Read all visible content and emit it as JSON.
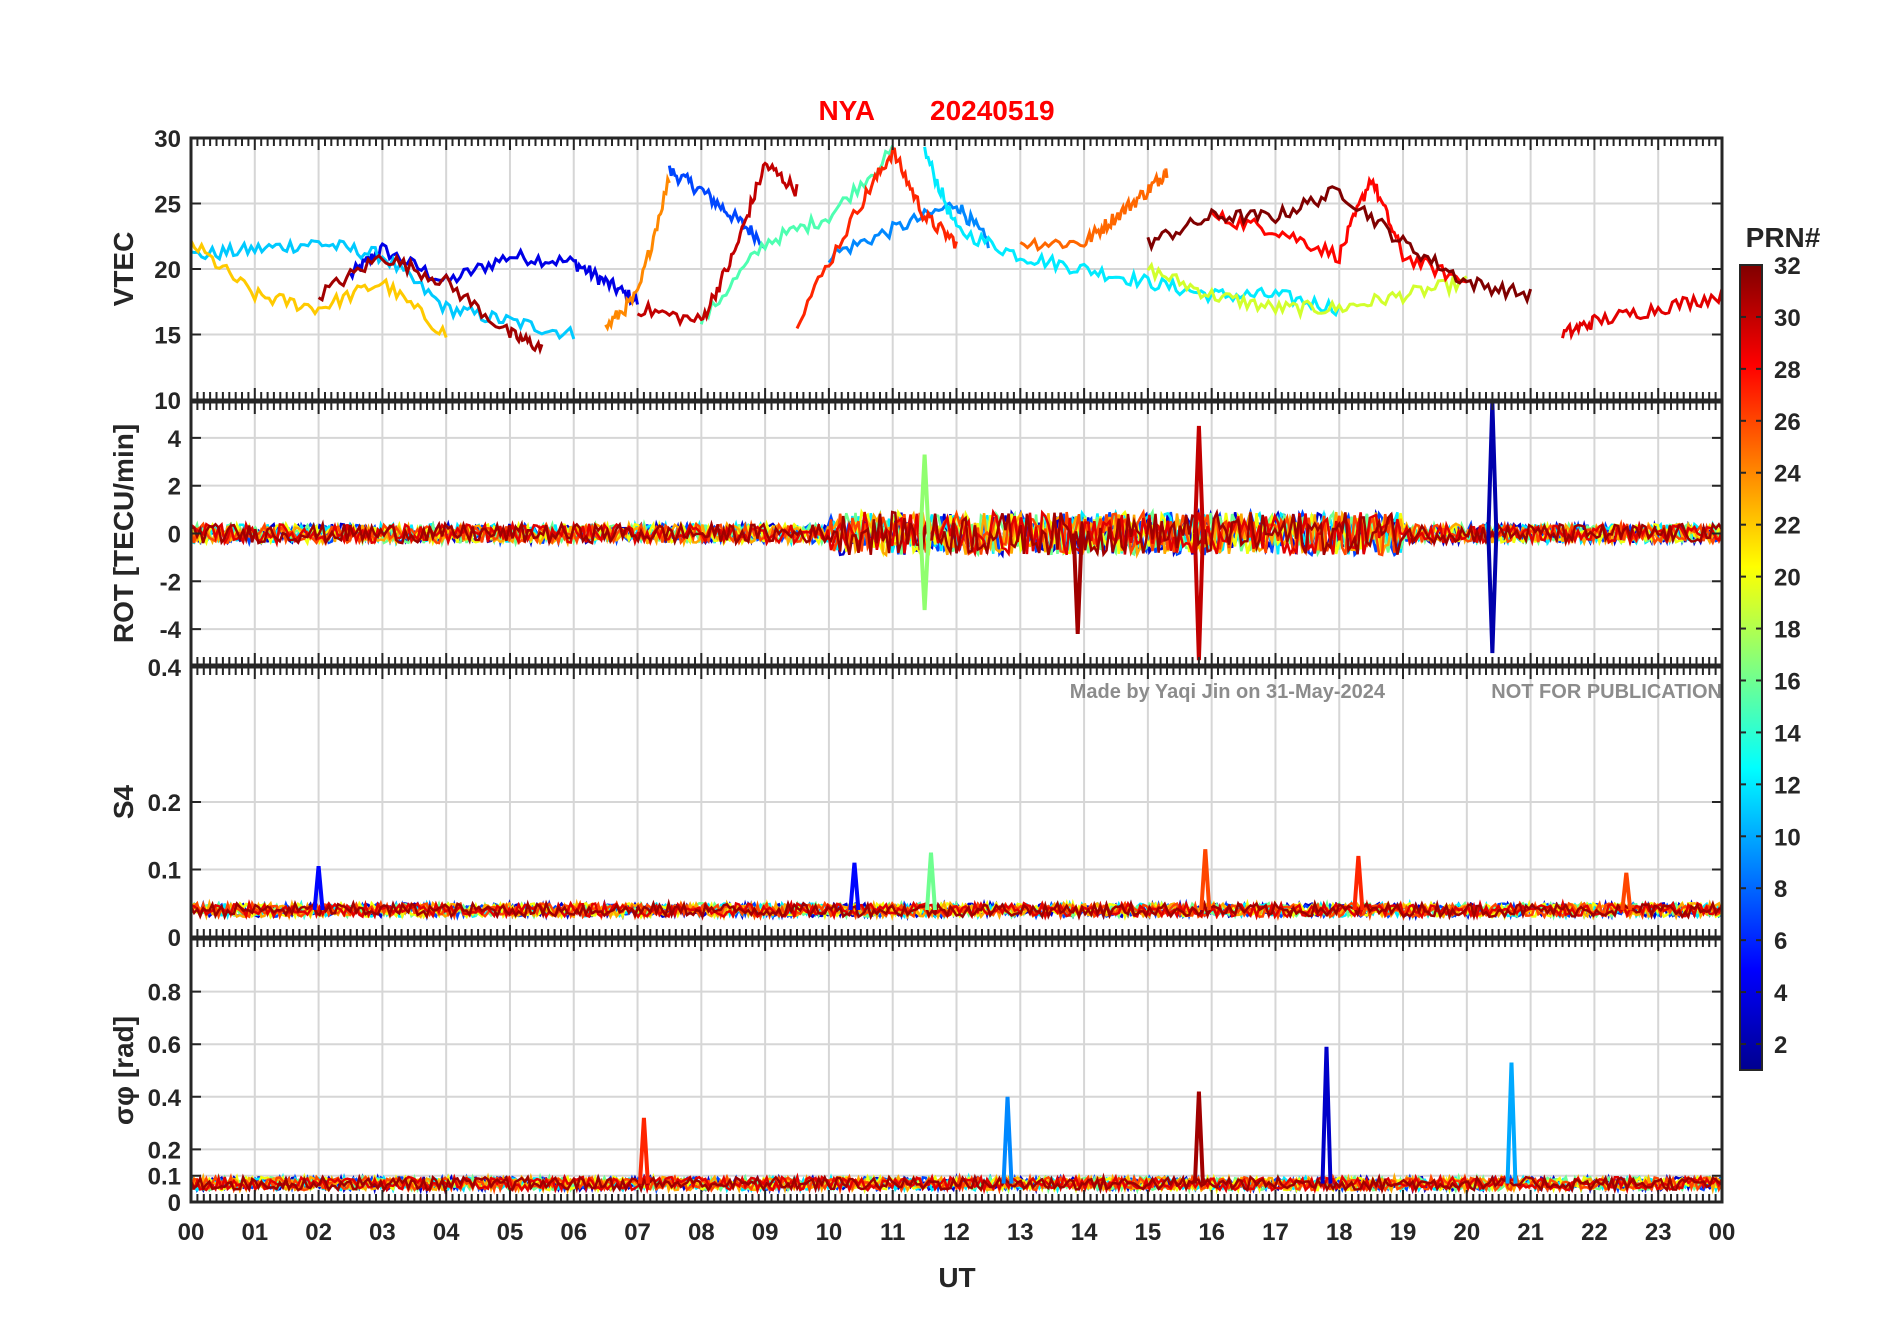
{
  "chart_data": {
    "type": "line",
    "title": {
      "station": "NYA",
      "date": "20240519"
    },
    "xlabel": "UT",
    "x_ticks": [
      "00",
      "01",
      "02",
      "03",
      "04",
      "05",
      "06",
      "07",
      "08",
      "09",
      "10",
      "11",
      "12",
      "13",
      "14",
      "15",
      "16",
      "17",
      "18",
      "19",
      "20",
      "21",
      "22",
      "23",
      "00"
    ],
    "xlim": [
      0,
      24
    ],
    "grid": true,
    "watermark": {
      "author": "Made by Yaqi Jin on 31-May-2024",
      "notice": "NOT FOR PUBLICATION"
    },
    "colorbar": {
      "label": "PRN#",
      "range": [
        1,
        32
      ],
      "ticks": [
        "2",
        "4",
        "6",
        "8",
        "10",
        "12",
        "14",
        "16",
        "18",
        "20",
        "22",
        "24",
        "26",
        "28",
        "30",
        "32"
      ],
      "colormap": [
        "#00008f",
        "#0000ff",
        "#0080ff",
        "#00ffff",
        "#80ff80",
        "#ffff00",
        "#ff8000",
        "#ff0000",
        "#800000"
      ]
    },
    "panels": [
      {
        "name": "vtec",
        "ylabel": "VTEC",
        "ylim": [
          10,
          30
        ],
        "y_ticks": [
          "30",
          "25",
          "20",
          "15",
          "10"
        ],
        "y_values": [
          30,
          25,
          20,
          15,
          10
        ],
        "series": [
          {
            "prn": 4,
            "x": [
              2.5,
              3.0,
              4.0,
              5.0,
              6.0,
              6.5,
              7.0
            ],
            "y": [
              19.5,
              21.5,
              19.0,
              21.0,
              20.5,
              19.0,
              17.5
            ]
          },
          {
            "prn": 7,
            "x": [
              7.5,
              8.0,
              8.5,
              9.0
            ],
            "y": [
              27.5,
              26.0,
              24.0,
              22.0
            ]
          },
          {
            "prn": 11,
            "x": [
              0.0,
              1.0,
              2.0,
              3.0,
              4.0,
              5.0,
              6.0
            ],
            "y": [
              21.0,
              21.5,
              22.0,
              21.0,
              17.0,
              16.0,
              15.0
            ]
          },
          {
            "prn": 9,
            "x": [
              10.0,
              11.0,
              12.0,
              12.5
            ],
            "y": [
              21.0,
              23.0,
              25.0,
              22.0
            ]
          },
          {
            "prn": 12,
            "x": [
              11.5,
              12.0,
              13.0,
              14.0,
              15.0,
              16.0,
              17.0,
              18.0
            ],
            "y": [
              29.0,
              23.0,
              21.0,
              20.0,
              19.0,
              18.0,
              18.0,
              17.0
            ]
          },
          {
            "prn": 15,
            "x": [
              8.0,
              9.0,
              10.0,
              11.0
            ],
            "y": [
              16.0,
              22.0,
              24.0,
              29.0
            ]
          },
          {
            "prn": 19,
            "x": [
              15.0,
              16.0,
              17.0,
              18.0,
              19.0,
              20.0
            ],
            "y": [
              20.0,
              18.0,
              17.0,
              17.0,
              18.0,
              19.0
            ]
          },
          {
            "prn": 22,
            "x": [
              0.0,
              1.0,
              2.0,
              3.0,
              4.0
            ],
            "y": [
              22.0,
              18.0,
              17.0,
              19.0,
              15.0
            ]
          },
          {
            "prn": 24,
            "x": [
              6.5,
              7.0,
              7.5
            ],
            "y": [
              15.5,
              18.0,
              27.0
            ]
          },
          {
            "prn": 25,
            "x": [
              13.0,
              14.0,
              14.5,
              15.0,
              15.3
            ],
            "y": [
              22.0,
              22.0,
              24.0,
              26.0,
              27.5
            ]
          },
          {
            "prn": 27,
            "x": [
              9.5,
              10.5,
              11.0,
              11.5,
              12.0
            ],
            "y": [
              16.0,
              25.0,
              29.0,
              24.0,
              22.0
            ]
          },
          {
            "prn": 28,
            "x": [
              16.0,
              17.0,
              18.0,
              18.5,
              19.0,
              20.0
            ],
            "y": [
              24.0,
              23.0,
              21.0,
              27.0,
              21.0,
              19.0
            ]
          },
          {
            "prn": 30,
            "x": [
              7.0,
              8.0,
              8.5,
              9.0,
              9.5
            ],
            "y": [
              17.0,
              16.0,
              21.0,
              28.0,
              26.0
            ]
          },
          {
            "prn": 31,
            "x": [
              2.0,
              3.0,
              4.0,
              5.0,
              5.5
            ],
            "y": [
              18.0,
              21.0,
              19.0,
              15.0,
              14.0
            ]
          },
          {
            "prn": 32,
            "x": [
              15.0,
              16.0,
              17.0,
              18.0,
              19.0,
              20.0,
              21.0
            ],
            "y": [
              22.0,
              24.0,
              24.0,
              26.0,
              22.0,
              19.0,
              18.0
            ]
          },
          {
            "prn": 29,
            "x": [
              21.5,
              22.0,
              23.0,
              24.0
            ],
            "y": [
              15.0,
              16.0,
              17.0,
              18.0
            ]
          }
        ]
      },
      {
        "name": "rot",
        "ylabel": "ROT [TECU/min]",
        "ylim": [
          -5.5,
          5.5
        ],
        "y_ticks": [
          "4",
          "2",
          "0",
          "-2",
          "-4"
        ],
        "y_values": [
          4,
          2,
          0,
          -2,
          -4
        ],
        "spikes": [
          {
            "prn": 30,
            "x": 15.8,
            "y": 4.5
          },
          {
            "prn": 30,
            "x": 15.8,
            "y": -5.3
          },
          {
            "prn": 2,
            "x": 20.4,
            "y": 5.5
          },
          {
            "prn": 2,
            "x": 20.4,
            "y": -5.0
          },
          {
            "prn": 31,
            "x": 13.9,
            "y": -4.2
          },
          {
            "prn": 17,
            "x": 11.5,
            "y": 3.3
          },
          {
            "prn": 17,
            "x": 11.5,
            "y": -3.2
          }
        ]
      },
      {
        "name": "s4",
        "ylabel": "S4",
        "ylim": [
          0,
          0.4
        ],
        "y_ticks": [
          "0.4",
          "0.2",
          "0.1",
          "0"
        ],
        "y_values": [
          0.4,
          0.2,
          0.1,
          0
        ],
        "spikes": [
          {
            "prn": 5,
            "x": 2.0,
            "y": 0.105
          },
          {
            "prn": 5,
            "x": 10.4,
            "y": 0.11
          },
          {
            "prn": 16,
            "x": 11.6,
            "y": 0.125
          },
          {
            "prn": 26,
            "x": 15.9,
            "y": 0.13
          },
          {
            "prn": 27,
            "x": 18.3,
            "y": 0.12
          },
          {
            "prn": 26,
            "x": 22.5,
            "y": 0.095
          }
        ]
      },
      {
        "name": "sigphi",
        "ylabel": "σφ [rad]",
        "ylim": [
          0,
          1.0
        ],
        "y_ticks": [
          "0.8",
          "0.6",
          "0.4",
          "0.2",
          "0.1",
          "0"
        ],
        "y_values": [
          0.8,
          0.6,
          0.4,
          0.2,
          0.1,
          0
        ],
        "spikes": [
          {
            "prn": 3,
            "x": 17.8,
            "y": 0.59
          },
          {
            "prn": 10,
            "x": 20.7,
            "y": 0.53
          },
          {
            "prn": 31,
            "x": 15.8,
            "y": 0.42
          },
          {
            "prn": 9,
            "x": 12.8,
            "y": 0.4
          },
          {
            "prn": 27,
            "x": 7.1,
            "y": 0.32
          }
        ]
      }
    ]
  }
}
